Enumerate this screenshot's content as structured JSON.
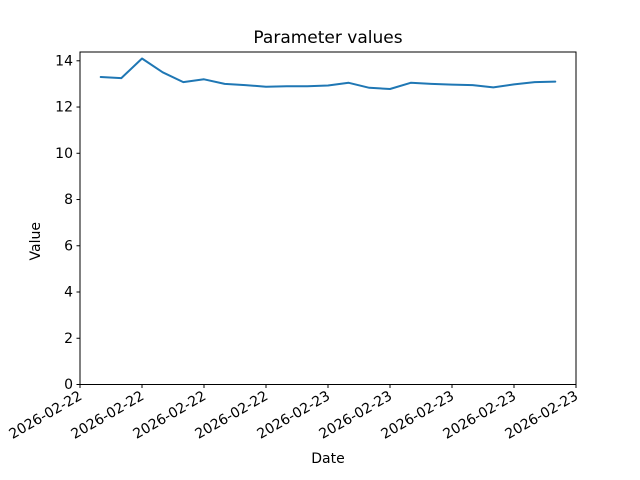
{
  "figure": {
    "background": "#ffffff",
    "text_color": "#000000"
  },
  "chart_data": {
    "type": "line",
    "title": "Parameter values",
    "xlabel": "Date",
    "ylabel": "Value",
    "line_color": "#1f77b4",
    "grid": false,
    "legend": "none",
    "ylim": [
      0,
      14.38
    ],
    "yticks": [
      0,
      2,
      4,
      6,
      8,
      10,
      12,
      14
    ],
    "x_axis_start": "2026-02-22 12:00",
    "x_axis_end": "2026-02-23 12:00",
    "x_tick_offsets_hours": [
      0,
      3,
      6,
      9,
      12,
      15,
      18,
      21,
      24
    ],
    "x_tick_labels": [
      "2026-02-22",
      "2026-02-22",
      "2026-02-22",
      "2026-02-22",
      "2026-02-23",
      "2026-02-23",
      "2026-02-23",
      "2026-02-23",
      "2026-02-23"
    ],
    "x_tick_label_rotation_deg": 30,
    "series": [
      {
        "name": "Parameter values",
        "x_times": [
          "2026-02-22 13:00",
          "2026-02-22 14:00",
          "2026-02-22 15:00",
          "2026-02-22 16:00",
          "2026-02-22 17:00",
          "2026-02-22 18:00",
          "2026-02-22 19:00",
          "2026-02-22 20:00",
          "2026-02-22 21:00",
          "2026-02-22 22:00",
          "2026-02-22 23:00",
          "2026-02-23 00:00",
          "2026-02-23 01:00",
          "2026-02-23 02:00",
          "2026-02-23 03:00",
          "2026-02-23 04:00",
          "2026-02-23 05:00",
          "2026-02-23 06:00",
          "2026-02-23 07:00",
          "2026-02-23 08:00",
          "2026-02-23 09:00",
          "2026-02-23 10:00",
          "2026-02-23 11:00"
        ],
        "x_offsets_hours": [
          1,
          2,
          3,
          4,
          5,
          6,
          7,
          8,
          9,
          10,
          11,
          12,
          13,
          14,
          15,
          16,
          17,
          18,
          19,
          20,
          21,
          22,
          23
        ],
        "values": [
          13.3,
          13.25,
          14.1,
          13.5,
          13.08,
          13.2,
          13.0,
          12.95,
          12.88,
          12.9,
          12.9,
          12.93,
          13.05,
          12.83,
          12.78,
          13.05,
          13.0,
          12.97,
          12.95,
          12.85,
          12.98,
          13.08,
          13.1
        ]
      }
    ]
  }
}
